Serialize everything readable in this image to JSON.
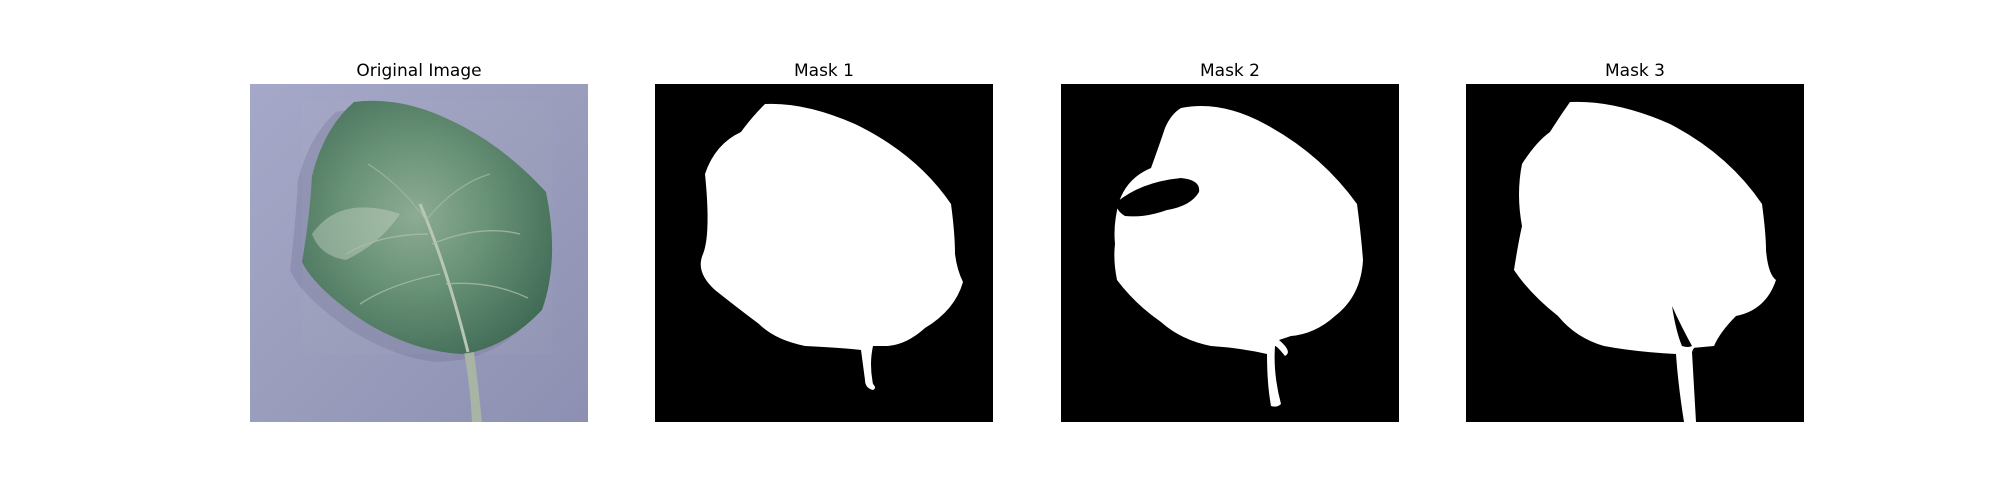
{
  "panels": [
    {
      "title": "Original Image",
      "kind": "photo"
    },
    {
      "title": "Mask 1",
      "kind": "mask"
    },
    {
      "title": "Mask 2",
      "kind": "mask"
    },
    {
      "title": "Mask 3",
      "kind": "mask"
    }
  ],
  "colors": {
    "background": "#ffffff",
    "mask_background": "#000000",
    "mask_foreground": "#ffffff",
    "photo_background": "#9da0c0",
    "leaf": "#5e8a70"
  }
}
